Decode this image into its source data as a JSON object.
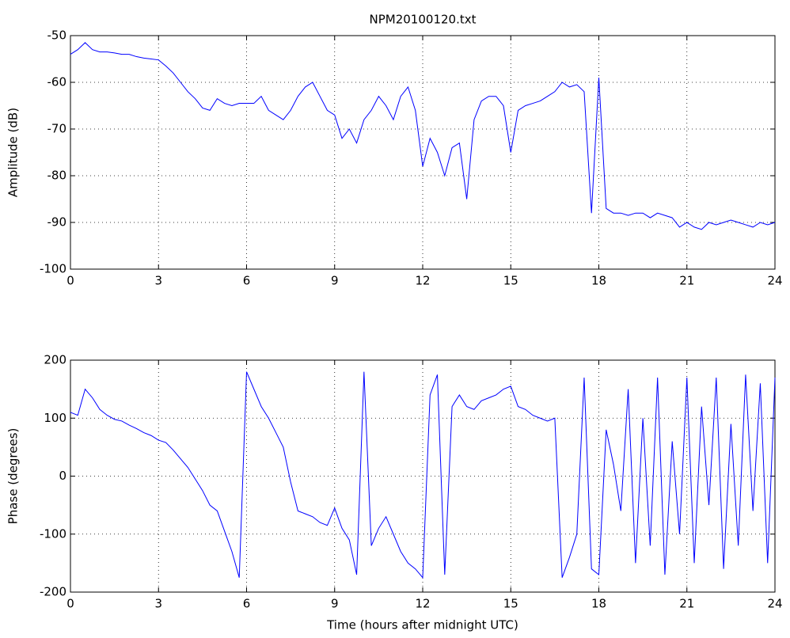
{
  "chart_data": [
    {
      "type": "line",
      "title": "NPM20100120.txt",
      "ylabel": "Amplitude (dB)",
      "color": "#0000ff",
      "grid": true,
      "xlim": [
        0,
        24
      ],
      "xticks": [
        0,
        3,
        6,
        9,
        12,
        15,
        18,
        21,
        24
      ],
      "ylim": [
        -100,
        -50
      ],
      "yticks": [
        -100,
        -90,
        -80,
        -70,
        -60,
        -50
      ],
      "x": [
        0,
        0.25,
        0.5,
        0.75,
        1,
        1.25,
        1.5,
        1.75,
        2,
        2.25,
        2.5,
        2.75,
        3,
        3.25,
        3.5,
        3.75,
        4,
        4.25,
        4.5,
        4.75,
        5,
        5.25,
        5.5,
        5.75,
        6,
        6.25,
        6.5,
        6.75,
        7,
        7.25,
        7.5,
        7.75,
        8,
        8.25,
        8.5,
        8.75,
        9,
        9.25,
        9.5,
        9.75,
        10,
        10.25,
        10.5,
        10.75,
        11,
        11.25,
        11.5,
        11.75,
        12,
        12.25,
        12.5,
        12.75,
        13,
        13.25,
        13.5,
        13.75,
        14,
        14.25,
        14.5,
        14.75,
        15,
        15.25,
        15.5,
        15.75,
        16,
        16.25,
        16.5,
        16.75,
        17,
        17.25,
        17.5,
        17.75,
        18,
        18.25,
        18.5,
        18.75,
        19,
        19.25,
        19.5,
        19.75,
        20,
        20.25,
        20.5,
        20.75,
        21,
        21.25,
        21.5,
        21.75,
        22,
        22.25,
        22.5,
        22.75,
        23,
        23.25,
        23.5,
        23.75,
        24
      ],
      "values": [
        -54,
        -53,
        -51.5,
        -53,
        -53.5,
        -53.5,
        -53.7,
        -54,
        -54,
        -54.5,
        -54.8,
        -55,
        -55.2,
        -56.5,
        -58,
        -60,
        -62,
        -63.5,
        -65.5,
        -66,
        -63.5,
        -64.5,
        -65,
        -64.5,
        -64.5,
        -64.5,
        -63,
        -66,
        -67,
        -68,
        -66,
        -63,
        -61,
        -60,
        -63,
        -66,
        -67,
        -72,
        -70,
        -73,
        -68,
        -66,
        -63,
        -65,
        -68,
        -63,
        -61,
        -66,
        -78,
        -72,
        -75,
        -80,
        -74,
        -73,
        -85,
        -68,
        -64,
        -63,
        -63,
        -65,
        -75,
        -66,
        -65,
        -64.5,
        -64,
        -63,
        -62,
        -60,
        -61,
        -60.5,
        -62,
        -88,
        -59,
        -87,
        -88,
        -88,
        -88.5,
        -88,
        -88,
        -89,
        -88,
        -88.5,
        -89,
        -91,
        -90,
        -91,
        -91.5,
        -90,
        -90.5,
        -90,
        -89.5,
        -90,
        -90.5,
        -91,
        -90,
        -90.5,
        -90
      ]
    },
    {
      "type": "line",
      "xlabel": "Time (hours after midnight UTC)",
      "ylabel": "Phase (degrees)",
      "color": "#0000ff",
      "grid": true,
      "xlim": [
        0,
        24
      ],
      "xticks": [
        0,
        3,
        6,
        9,
        12,
        15,
        18,
        21,
        24
      ],
      "ylim": [
        -200,
        200
      ],
      "yticks": [
        -200,
        -100,
        0,
        100,
        200
      ],
      "x": [
        0,
        0.25,
        0.5,
        0.75,
        1,
        1.25,
        1.5,
        1.75,
        2,
        2.25,
        2.5,
        2.75,
        3,
        3.25,
        3.5,
        3.75,
        4,
        4.25,
        4.5,
        4.75,
        5,
        5.25,
        5.5,
        5.75,
        6,
        6.25,
        6.5,
        6.75,
        7,
        7.25,
        7.5,
        7.75,
        8,
        8.25,
        8.5,
        8.75,
        9,
        9.25,
        9.5,
        9.75,
        10,
        10.25,
        10.5,
        10.75,
        11,
        11.25,
        11.5,
        11.75,
        12,
        12.25,
        12.5,
        12.75,
        13,
        13.25,
        13.5,
        13.75,
        14,
        14.25,
        14.5,
        14.75,
        15,
        15.25,
        15.5,
        15.75,
        16,
        16.25,
        16.5,
        16.75,
        17,
        17.25,
        17.5,
        17.75,
        18,
        18.25,
        18.5,
        18.75,
        19,
        19.25,
        19.5,
        19.75,
        20,
        20.25,
        20.5,
        20.75,
        21,
        21.25,
        21.5,
        21.75,
        22,
        22.25,
        22.5,
        22.75,
        23,
        23.25,
        23.5,
        23.75,
        24
      ],
      "values": [
        110,
        105,
        150,
        135,
        115,
        105,
        98,
        95,
        88,
        82,
        75,
        70,
        62,
        58,
        45,
        30,
        15,
        -5,
        -25,
        -50,
        -60,
        -95,
        -130,
        -175,
        180,
        150,
        120,
        100,
        75,
        50,
        -10,
        -60,
        -65,
        -70,
        -80,
        -85,
        -55,
        -90,
        -110,
        -170,
        180,
        -120,
        -90,
        -70,
        -100,
        -130,
        -150,
        -160,
        -175,
        140,
        175,
        -170,
        120,
        140,
        120,
        115,
        130,
        135,
        140,
        150,
        155,
        120,
        115,
        105,
        100,
        95,
        100,
        -175,
        -140,
        -100,
        170,
        -160,
        -170,
        80,
        20,
        -60,
        150,
        -150,
        100,
        -120,
        170,
        -170,
        60,
        -100,
        170,
        -150,
        120,
        -50,
        170,
        -160,
        90,
        -120,
        175,
        -60,
        160,
        -150,
        170
      ]
    }
  ]
}
